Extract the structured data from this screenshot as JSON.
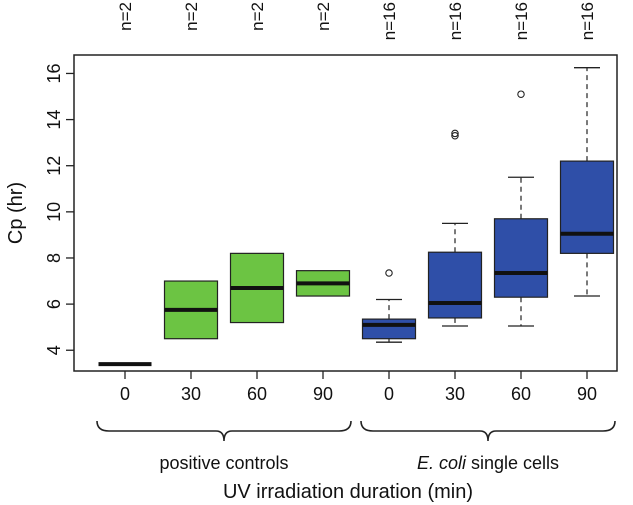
{
  "chart_data": {
    "type": "boxplot",
    "xlabel": "UV irradiation duration (min)",
    "ylabel": "Cp (hr)",
    "ylim": [
      3.1,
      16.8
    ],
    "yticks": [
      4,
      6,
      8,
      10,
      12,
      14,
      16
    ],
    "categories": [
      "0",
      "30",
      "60",
      "90",
      "0",
      "30",
      "60",
      "90"
    ],
    "sample_sizes": [
      "n=2",
      "n=2",
      "n=2",
      "n=2",
      "n=16",
      "n=16",
      "n=16",
      "n=16"
    ],
    "groups": [
      {
        "label": "positive controls",
        "label_italic": "",
        "label_rest": "positive controls",
        "start": 0,
        "end": 3,
        "color": "#6cc443"
      },
      {
        "label": "E. coli single cells",
        "label_italic": "E. coli",
        "label_rest": " single cells",
        "start": 4,
        "end": 7,
        "color": "#2f4fa8"
      }
    ],
    "boxes": [
      {
        "group": 0,
        "whisker_low": 3.4,
        "q1": 3.4,
        "median": 3.4,
        "q3": 3.4,
        "whisker_high": 3.4,
        "outliers": []
      },
      {
        "group": 0,
        "whisker_low": 4.5,
        "q1": 4.5,
        "median": 5.75,
        "q3": 7.0,
        "whisker_high": 7.0,
        "outliers": []
      },
      {
        "group": 0,
        "whisker_low": 5.2,
        "q1": 5.2,
        "median": 6.7,
        "q3": 8.2,
        "whisker_high": 8.2,
        "outliers": []
      },
      {
        "group": 0,
        "whisker_low": 6.35,
        "q1": 6.35,
        "median": 6.9,
        "q3": 7.45,
        "whisker_high": 7.45,
        "outliers": []
      },
      {
        "group": 1,
        "whisker_low": 4.35,
        "q1": 4.5,
        "median": 5.1,
        "q3": 5.35,
        "whisker_high": 6.2,
        "outliers": [
          7.35
        ]
      },
      {
        "group": 1,
        "whisker_low": 5.05,
        "q1": 5.4,
        "median": 6.05,
        "q3": 8.25,
        "whisker_high": 9.5,
        "outliers": [
          13.3,
          13.4
        ]
      },
      {
        "group": 1,
        "whisker_low": 5.05,
        "q1": 6.3,
        "median": 7.35,
        "q3": 9.7,
        "whisker_high": 11.5,
        "outliers": [
          15.1
        ]
      },
      {
        "group": 1,
        "whisker_low": 6.35,
        "q1": 8.2,
        "median": 9.05,
        "q3": 12.2,
        "whisker_high": 16.25,
        "outliers": []
      }
    ]
  }
}
